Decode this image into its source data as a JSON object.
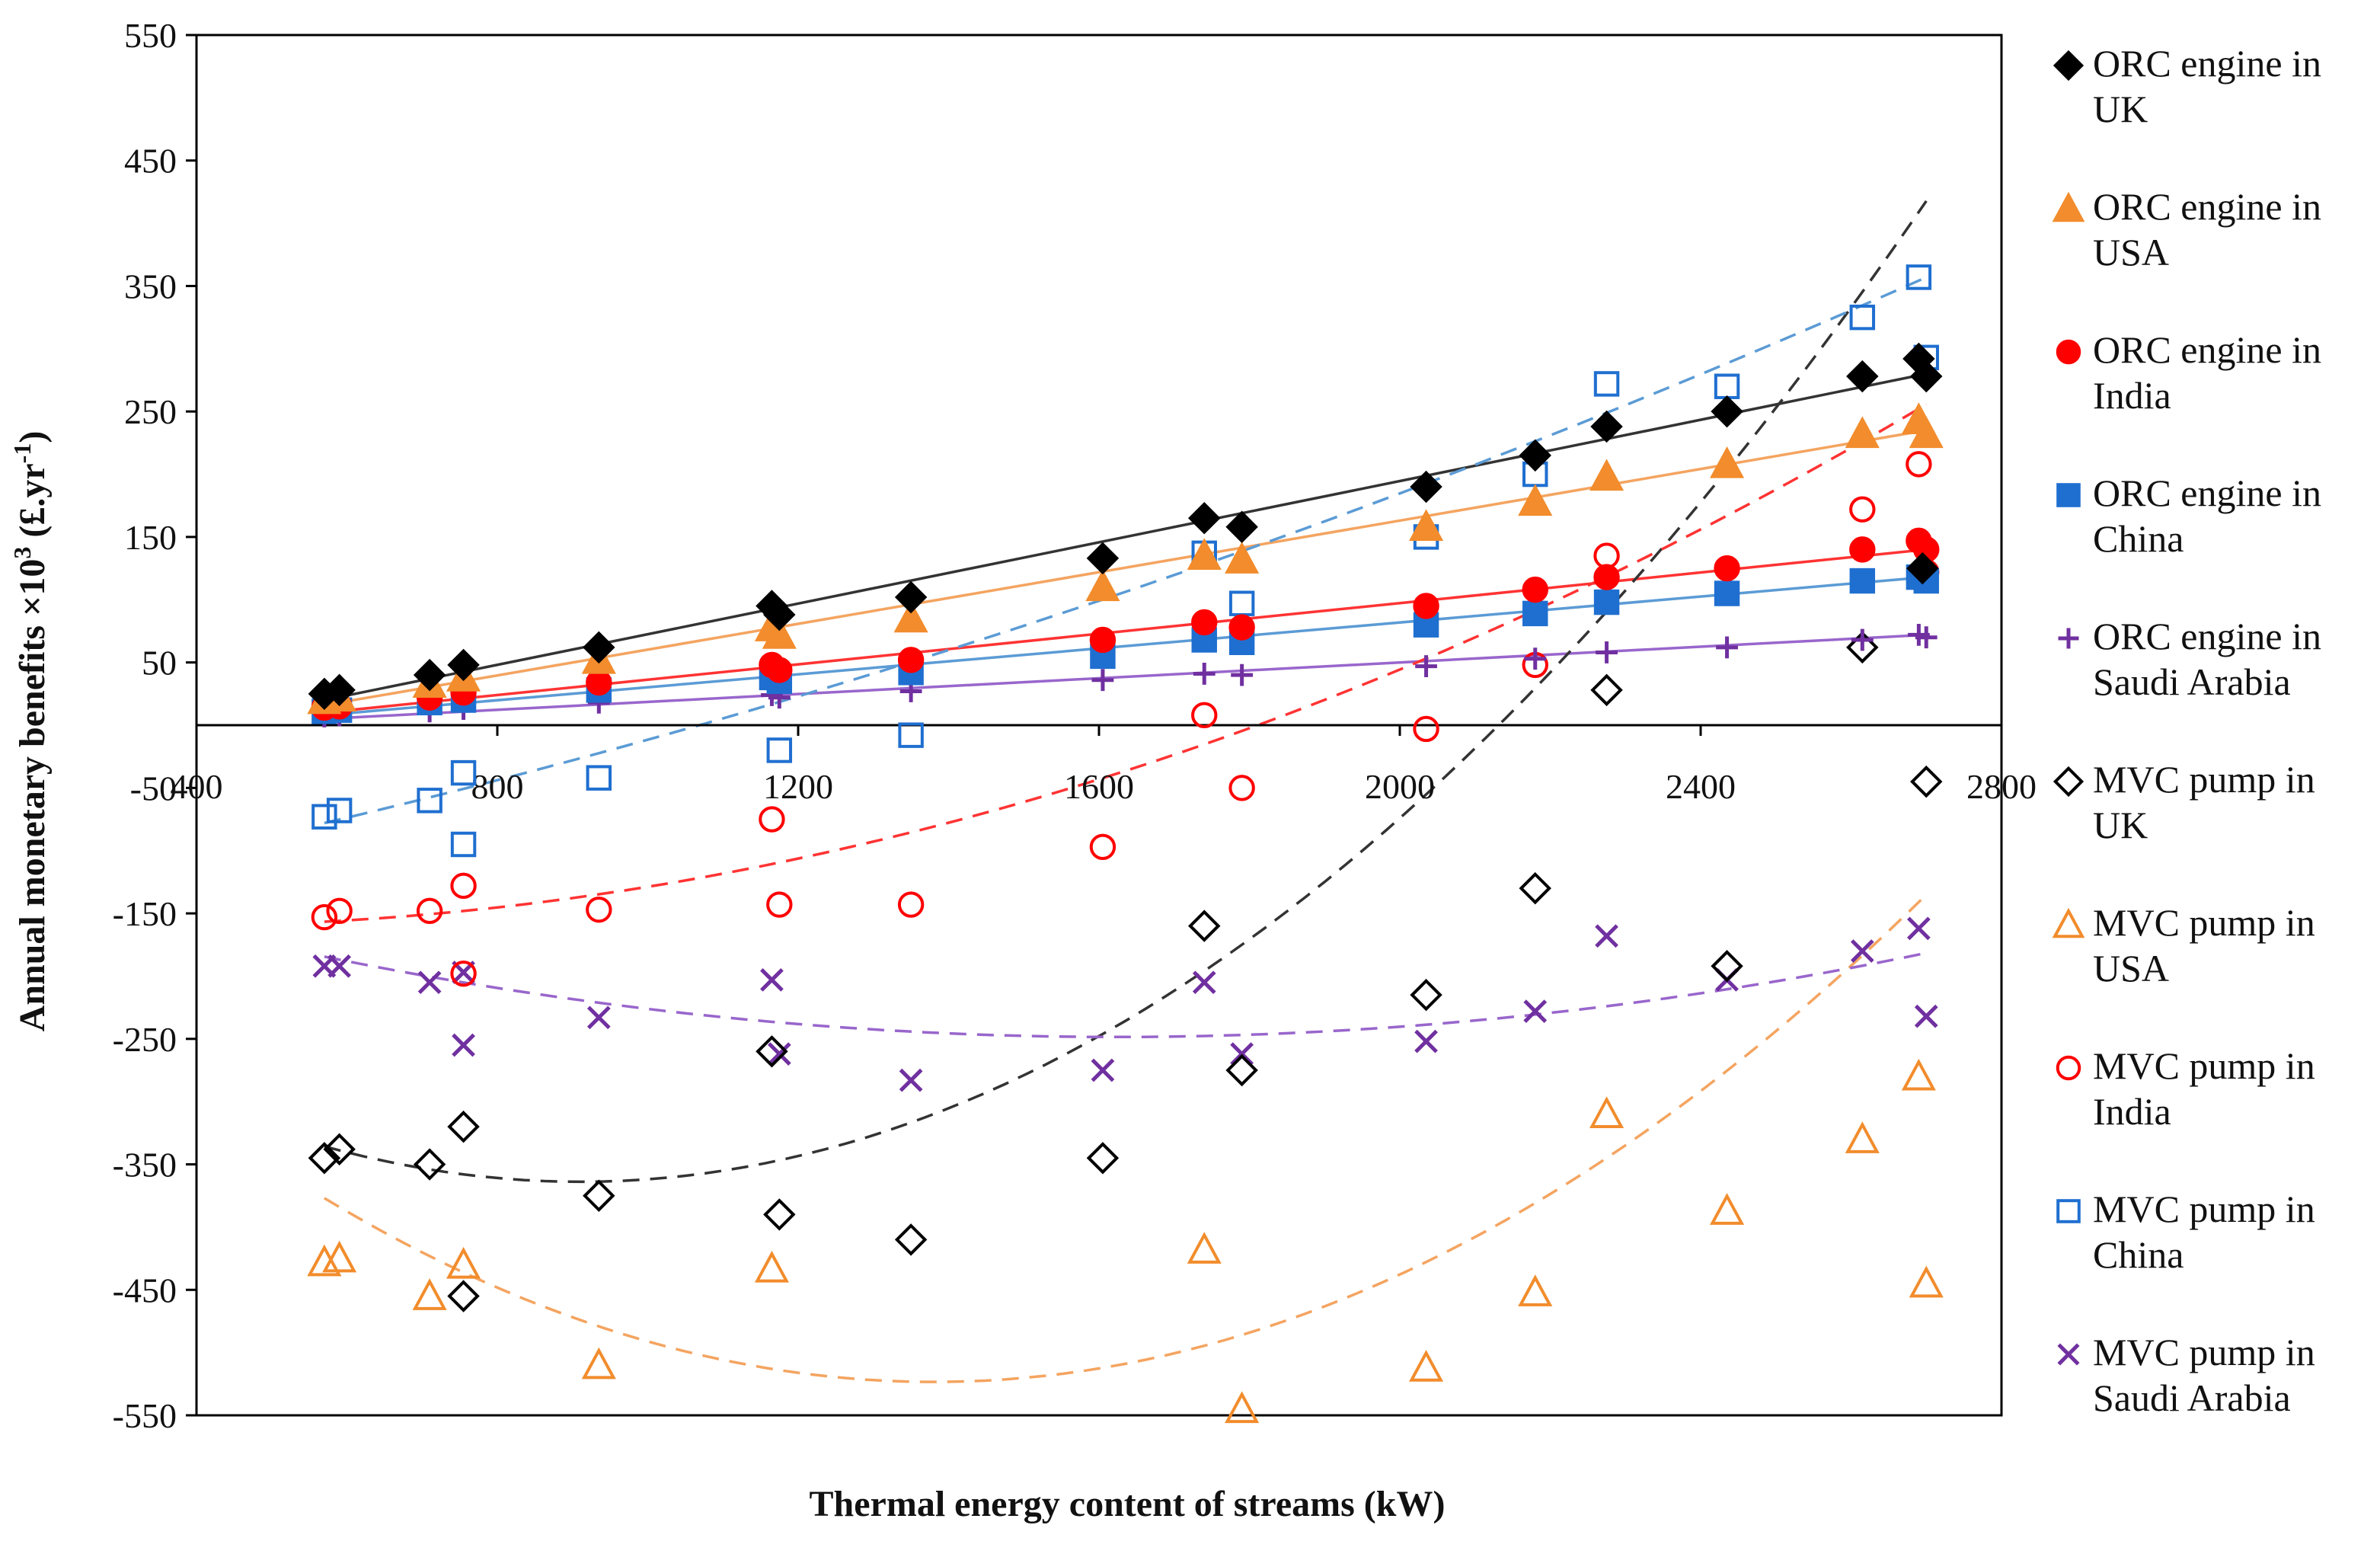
{
  "chart_data": {
    "type": "scatter",
    "title": "",
    "xlabel": "Thermal energy content of streams (kW)",
    "ylabel_main": "Annual monetary benefits ×10",
    "ylabel_sup": "3",
    "ylabel_units": " (£.yr",
    "ylabel_units_sup": "-1",
    "ylabel_end": ")",
    "xlim": [
      400,
      2800
    ],
    "ylim": [
      -550,
      550
    ],
    "xticks": [
      400,
      800,
      1200,
      1600,
      2000,
      2400,
      2800
    ],
    "xtick_labels": [
      "400",
      "800",
      "1200",
      "1600",
      "2000",
      "2400",
      "2800"
    ],
    "yticks": [
      550,
      450,
      350,
      250,
      150,
      50,
      -50,
      -150,
      -250,
      -350,
      -450,
      -550
    ],
    "ytick_labels": [
      "550",
      "450",
      "350",
      "250",
      "150",
      "50",
      "-50",
      "-150",
      "-250",
      "-350",
      "-450",
      "-550"
    ],
    "grid": false,
    "legend_position": "right",
    "series": [
      {
        "name": "ORC engine in UK",
        "legend_lines": [
          "ORC engine in",
          "UK"
        ],
        "marker": "diamond-filled",
        "color": "#000000",
        "x": [
          570,
          590,
          710,
          755,
          935,
          1165,
          1175,
          1350,
          1605,
          1740,
          1790,
          2035,
          2180,
          2275,
          2435,
          2615,
          2690,
          2700,
          2695
        ],
        "y": [
          25,
          28,
          40,
          48,
          62,
          95,
          88,
          102,
          133,
          165,
          158,
          190,
          215,
          238,
          250,
          278,
          292,
          278,
          125
        ],
        "trend": {
          "type": "linear",
          "x": [
            570,
            2700
          ],
          "y": [
            20,
            280
          ],
          "color": "#333333",
          "style": "solid"
        }
      },
      {
        "name": "ORC engine in USA",
        "legend_lines": [
          "ORC engine in",
          "USA"
        ],
        "marker": "triangle-filled",
        "color": "#f28c2c",
        "x": [
          570,
          590,
          710,
          755,
          935,
          1165,
          1175,
          1350,
          1605,
          1740,
          1790,
          2035,
          2180,
          2275,
          2435,
          2615,
          2690,
          2700
        ],
        "y": [
          20,
          22,
          33,
          38,
          52,
          78,
          72,
          85,
          110,
          135,
          132,
          158,
          178,
          198,
          208,
          232,
          243,
          232
        ],
        "trend": {
          "type": "linear",
          "x": [
            570,
            2700
          ],
          "y": [
            16,
            235
          ],
          "color": "#f4a460",
          "style": "solid"
        }
      },
      {
        "name": "ORC engine in India",
        "legend_lines": [
          "ORC engine in",
          "India"
        ],
        "marker": "circle-filled",
        "color": "#ff0000",
        "x": [
          570,
          590,
          710,
          755,
          935,
          1165,
          1175,
          1350,
          1605,
          1740,
          1790,
          2035,
          2180,
          2275,
          2435,
          2615,
          2690,
          2700
        ],
        "y": [
          14,
          15,
          22,
          26,
          34,
          48,
          44,
          52,
          68,
          82,
          78,
          95,
          108,
          118,
          125,
          140,
          147,
          140
        ],
        "trend": {
          "type": "linear",
          "x": [
            570,
            2700
          ],
          "y": [
            10,
            140
          ],
          "color": "#ff3333",
          "style": "solid"
        }
      },
      {
        "name": "ORC engine in China",
        "legend_lines": [
          "ORC engine in",
          "China"
        ],
        "marker": "square-filled",
        "color": "#1f6fd0",
        "x": [
          570,
          590,
          710,
          755,
          935,
          1165,
          1175,
          1350,
          1605,
          1740,
          1790,
          2035,
          2180,
          2275,
          2435,
          2615,
          2690,
          2700
        ],
        "y": [
          11,
          12,
          18,
          20,
          28,
          38,
          35,
          42,
          55,
          68,
          66,
          80,
          89,
          98,
          105,
          115,
          118,
          115
        ],
        "trend": {
          "type": "linear",
          "x": [
            570,
            2700
          ],
          "y": [
            8,
            118
          ],
          "color": "#5b9bd5",
          "style": "solid"
        }
      },
      {
        "name": "ORC engine in Saudi Arabia",
        "legend_lines": [
          "ORC engine in",
          "Saudi Arabia"
        ],
        "marker": "plus",
        "color": "#7030a0",
        "x": [
          570,
          590,
          710,
          755,
          935,
          1165,
          1175,
          1350,
          1605,
          1740,
          1790,
          2035,
          2180,
          2275,
          2435,
          2615,
          2690,
          2700
        ],
        "y": [
          7,
          8,
          11,
          13,
          18,
          24,
          22,
          27,
          36,
          41,
          40,
          47,
          53,
          58,
          62,
          68,
          72,
          70
        ],
        "trend": {
          "type": "linear",
          "x": [
            570,
            2700
          ],
          "y": [
            5,
            72
          ],
          "color": "#9966cc",
          "style": "solid"
        }
      },
      {
        "name": "MVC pump in UK",
        "legend_lines": [
          "MVC pump in",
          "UK"
        ],
        "marker": "diamond-open",
        "color": "#000000",
        "x": [
          570,
          590,
          710,
          755,
          755,
          935,
          1165,
          1175,
          1350,
          1605,
          1740,
          1790,
          2035,
          2180,
          2275,
          2435,
          2615,
          2700
        ],
        "y": [
          -345,
          -338,
          -350,
          -320,
          -455,
          -375,
          -260,
          -390,
          -410,
          -345,
          -160,
          -275,
          -215,
          -130,
          28,
          -192,
          62,
          -45
        ],
        "trend": {
          "type": "quadratic",
          "x": [
            570,
            2700
          ],
          "a": 0.000244,
          "b": -0.4442,
          "c": -161.7,
          "color": "#333333",
          "style": "dashed"
        }
      },
      {
        "name": "MVC pump in USA",
        "legend_lines": [
          "MVC pump in",
          "USA"
        ],
        "marker": "triangle-open",
        "color": "#f28c2c",
        "x": [
          570,
          590,
          710,
          755,
          935,
          1165,
          1740,
          1790,
          2035,
          2180,
          2275,
          2435,
          2615,
          2690,
          2700
        ],
        "y": [
          -428,
          -425,
          -455,
          -430,
          -510,
          -433,
          -418,
          -545,
          -512,
          -452,
          -310,
          -387,
          -330,
          -280,
          -445
        ],
        "trend": {
          "type": "quadratic",
          "x": [
            570,
            2700
          ],
          "a": 0.000223,
          "b": -0.6157,
          "c": -98.4,
          "color": "#f4a460",
          "style": "dashed"
        }
      },
      {
        "name": "MVC pump in India",
        "legend_lines": [
          "MVC pump in",
          "India"
        ],
        "marker": "circle-open",
        "color": "#ff0000",
        "x": [
          570,
          590,
          710,
          755,
          755,
          935,
          1165,
          1175,
          1350,
          1605,
          1740,
          1790,
          2035,
          2180,
          2275,
          2615,
          2690,
          2700
        ],
        "y": [
          -153,
          -148,
          -148,
          -128,
          -198,
          -147,
          -75,
          -143,
          -143,
          -97,
          8,
          -50,
          -3,
          48,
          135,
          172,
          208,
          122
        ],
        "trend": {
          "type": "quadratic",
          "x": [
            570,
            2700
          ],
          "a": 7.58e-05,
          "b": -0.0543,
          "c": -150.3,
          "color": "#ff3333",
          "style": "dashed"
        }
      },
      {
        "name": "MVC pump in China",
        "legend_lines": [
          "MVC pump in",
          "China"
        ],
        "marker": "square-open",
        "color": "#1f6fd0",
        "x": [
          570,
          590,
          710,
          755,
          755,
          935,
          1175,
          1350,
          1740,
          1790,
          2035,
          2180,
          2275,
          2435,
          2615,
          2690,
          2700
        ],
        "y": [
          -73,
          -68,
          -60,
          -38,
          -95,
          -42,
          -20,
          -8,
          137,
          97,
          150,
          200,
          272,
          270,
          325,
          357,
          293
        ],
        "trend": {
          "type": "quadratic",
          "x": [
            570,
            2700
          ],
          "a": 2.93e-05,
          "b": 0.1084,
          "c": -149.3,
          "color": "#5b9bd5",
          "style": "dashed"
        }
      },
      {
        "name": "MVC pump in Saudi Arabia",
        "legend_lines": [
          "MVC pump in",
          "Saudi Arabia"
        ],
        "marker": "x",
        "color": "#7030a0",
        "x": [
          570,
          590,
          710,
          755,
          755,
          935,
          1165,
          1175,
          1350,
          1605,
          1740,
          1790,
          2035,
          2180,
          2275,
          2435,
          2615,
          2690,
          2700
        ],
        "y": [
          -192,
          -192,
          -205,
          -197,
          -255,
          -233,
          -203,
          -262,
          -283,
          -275,
          -205,
          -262,
          -252,
          -228,
          -168,
          -203,
          -180,
          -162,
          -232
        ],
        "trend": {
          "type": "quadratic",
          "x": [
            570,
            2700
          ],
          "a": 5.77e-05,
          "b": -0.1873,
          "c": -96.5,
          "color": "#9966cc",
          "style": "dashed"
        }
      }
    ]
  }
}
